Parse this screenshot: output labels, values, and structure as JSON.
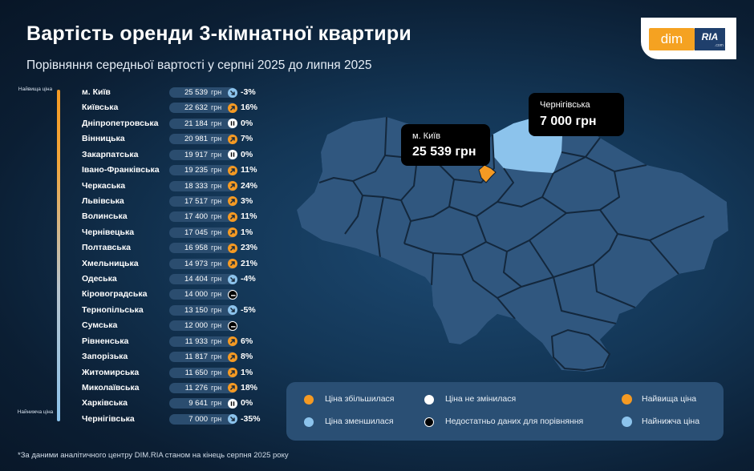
{
  "header": {
    "title": "Вартість оренди 3-кімнатної квартири",
    "subtitle": "Порівняння середньої вартості у серпні 2025 до липня 2025"
  },
  "logo": {
    "dim": "dim",
    "ria": "RIA",
    "com": ".com"
  },
  "scale": {
    "top_label": "Найвища ціна",
    "bottom_label": "Найнижча ціна"
  },
  "unit": "грн",
  "colors": {
    "increase": "#f59a23",
    "decrease": "#8cc3ec",
    "highest": "#f59a23",
    "lowest": "#8cc3ec",
    "map_fill": "#30577f",
    "map_stroke": "#13273c"
  },
  "chart_data": {
    "type": "table",
    "columns": [
      "region",
      "price_uah",
      "change"
    ],
    "rows": [
      {
        "region": "м. Київ",
        "value": "25 539",
        "change": "-3%",
        "trend": "down"
      },
      {
        "region": "Київська",
        "value": "22 632",
        "change": "16%",
        "trend": "up"
      },
      {
        "region": "Дніпропетровська",
        "value": "21 184",
        "change": "0%",
        "trend": "same"
      },
      {
        "region": "Вінницька",
        "value": "20 981",
        "change": "7%",
        "trend": "up"
      },
      {
        "region": "Закарпатська",
        "value": "19 917",
        "change": "0%",
        "trend": "same"
      },
      {
        "region": "Івано-Франківська",
        "value": "19 235",
        "change": "11%",
        "trend": "up"
      },
      {
        "region": "Черкаська",
        "value": "18 333",
        "change": "24%",
        "trend": "up"
      },
      {
        "region": "Львівська",
        "value": "17 517",
        "change": "3%",
        "trend": "up"
      },
      {
        "region": "Волинська",
        "value": "17 400",
        "change": "11%",
        "trend": "up"
      },
      {
        "region": "Чернівецька",
        "value": "17 045",
        "change": "1%",
        "trend": "up"
      },
      {
        "region": "Полтавська",
        "value": "16 958",
        "change": "23%",
        "trend": "up"
      },
      {
        "region": "Хмельницька",
        "value": "14 973",
        "change": "21%",
        "trend": "up"
      },
      {
        "region": "Одеська",
        "value": "14 404",
        "change": "-4%",
        "trend": "down"
      },
      {
        "region": "Кіровоградська",
        "value": "14 000",
        "change": "",
        "trend": "nodata"
      },
      {
        "region": "Тернопільська",
        "value": "13 150",
        "change": "-5%",
        "trend": "down"
      },
      {
        "region": "Сумська",
        "value": "12 000",
        "change": "",
        "trend": "nodata"
      },
      {
        "region": "Рівненська",
        "value": "11 933",
        "change": "6%",
        "trend": "up"
      },
      {
        "region": "Запорізька",
        "value": "11 817",
        "change": "8%",
        "trend": "up"
      },
      {
        "region": "Житомирська",
        "value": "11 650",
        "change": "1%",
        "trend": "up"
      },
      {
        "region": "Миколаївська",
        "value": "11 276",
        "change": "18%",
        "trend": "up"
      },
      {
        "region": "Харківська",
        "value": "9 641",
        "change": "0%",
        "trend": "same"
      },
      {
        "region": "Чернігівська",
        "value": "7 000",
        "change": "-35%",
        "trend": "down"
      }
    ]
  },
  "map": {
    "highest": {
      "name": "м. Київ",
      "value": "25 539 грн"
    },
    "lowest": {
      "name": "Чернігівська",
      "value": "7 000 грн"
    }
  },
  "legend": {
    "increase": "Ціна збільшилася",
    "decrease": "Ціна зменшилася",
    "unchanged": "Ціна не змінилася",
    "nodata": "Недостатньо даних для порівняння",
    "highest": "Найвища ціна",
    "lowest": "Найнижча ціна"
  },
  "footnote": "*За даними аналітичного центру DIM.RIA станом на кінець серпня 2025 року"
}
